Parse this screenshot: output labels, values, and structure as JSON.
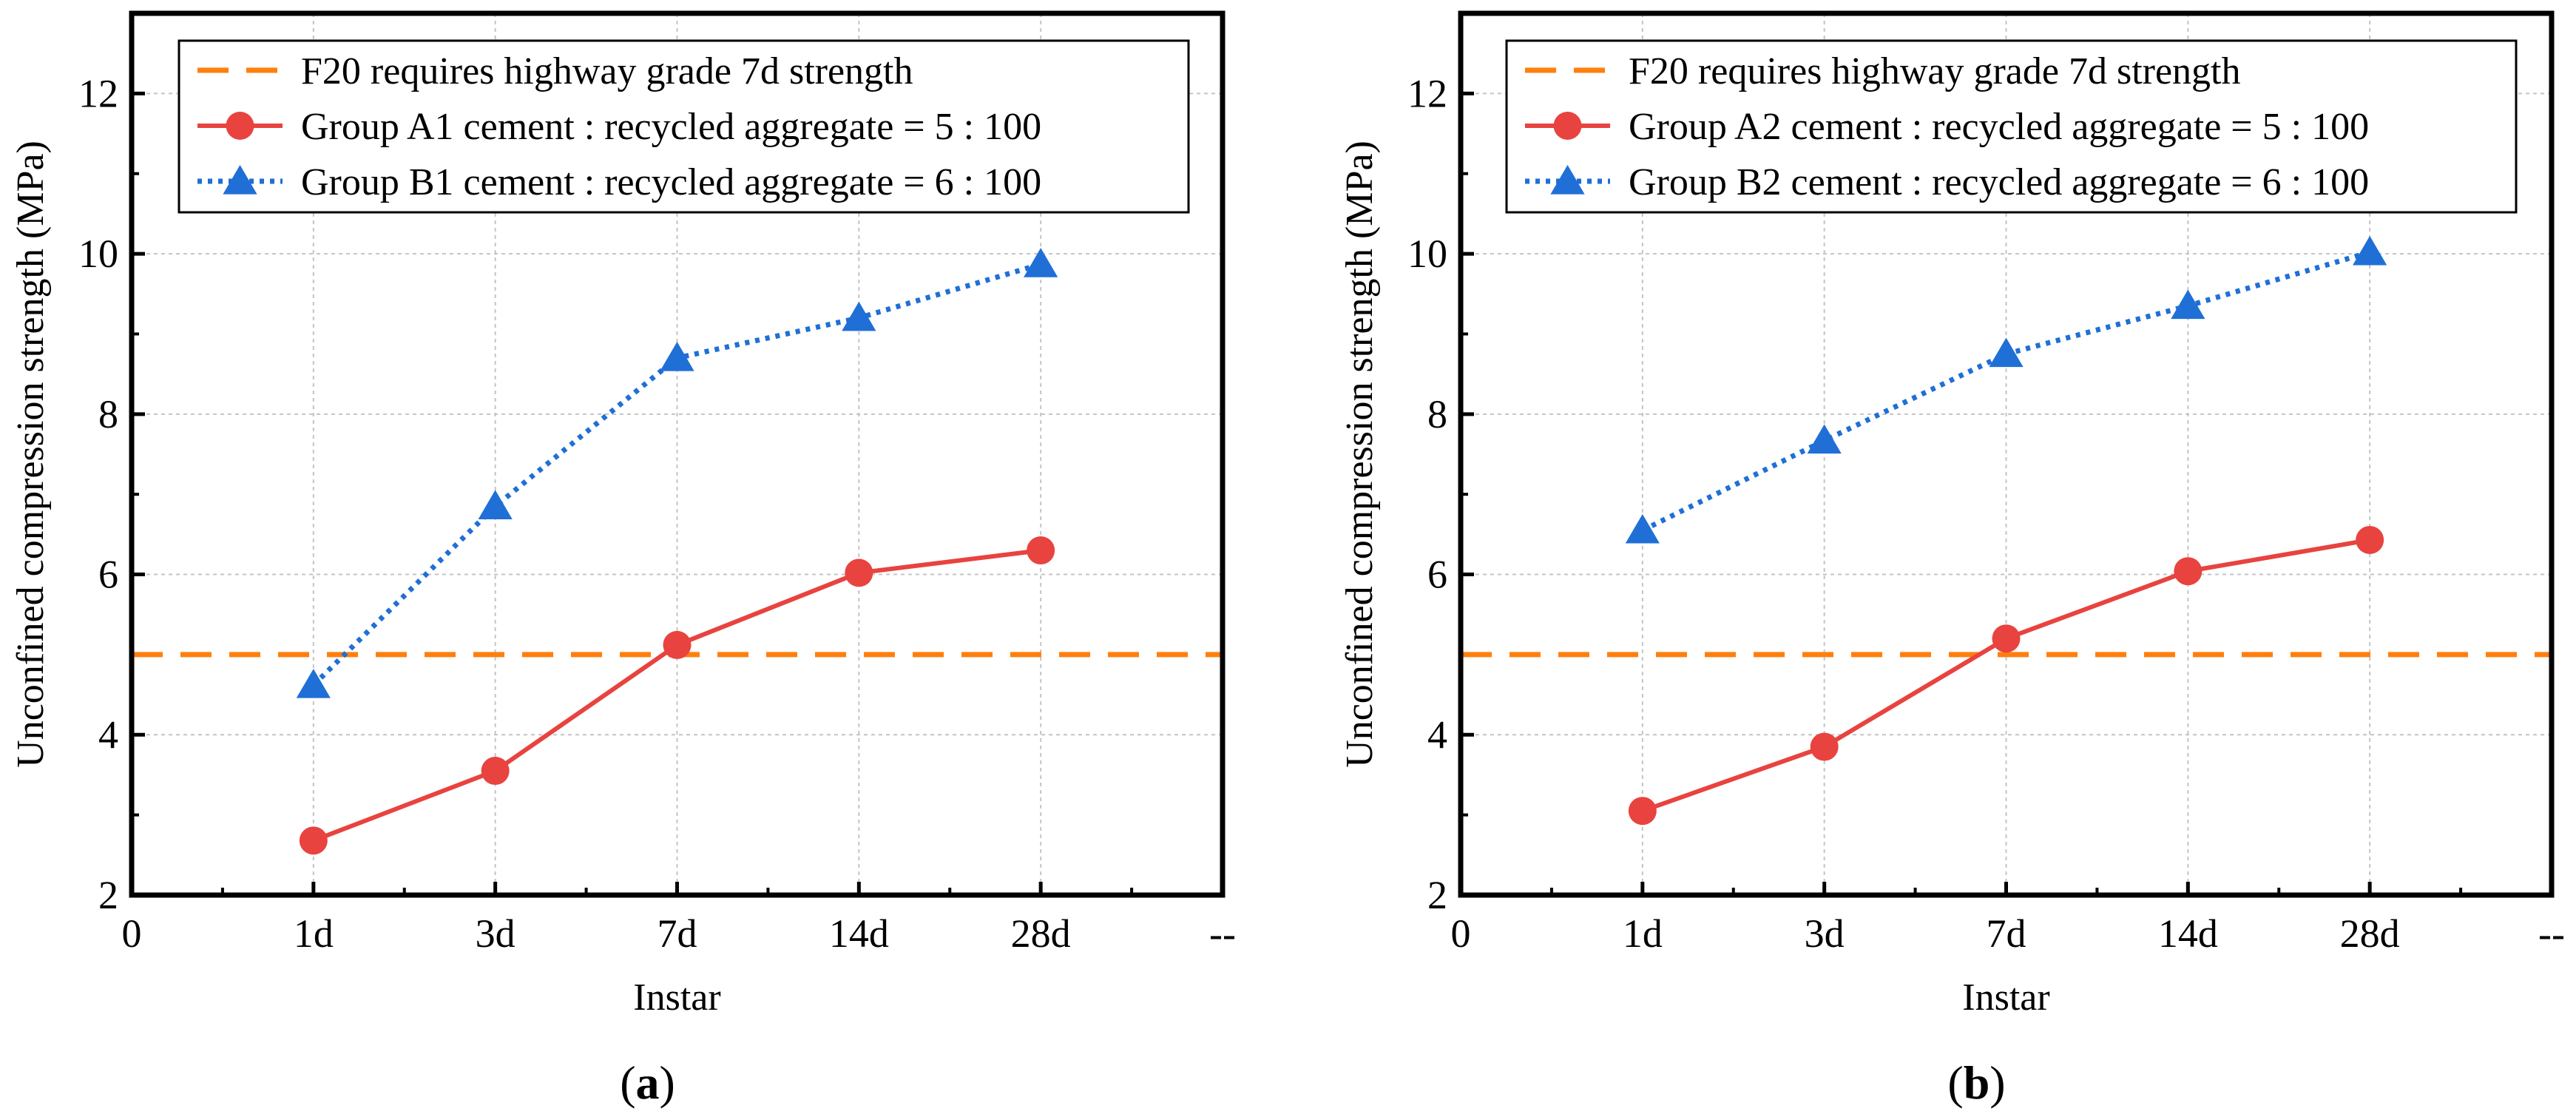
{
  "chart_data": [
    {
      "type": "line",
      "panel_label": "a",
      "xlabel": "Instar",
      "ylabel": "Unconfined compression strength (MPa)",
      "x_tick_labels": [
        "0",
        "1d",
        "3d",
        "7d",
        "14d",
        "28d",
        "--"
      ],
      "categories": [
        "1d",
        "3d",
        "7d",
        "14d",
        "28d"
      ],
      "ylim": [
        2,
        13
      ],
      "y_ticks": [
        2,
        4,
        6,
        8,
        10,
        12
      ],
      "grid": true,
      "legend_position": "top-left",
      "reference_line": {
        "name": "F20 requires highway grade 7d strength",
        "value": 5,
        "color": "#FF7F0E",
        "style": "dashed"
      },
      "series": [
        {
          "name": "Group A1 cement : recycled aggregate = 5 : 100",
          "values": [
            2.68,
            3.55,
            5.12,
            6.02,
            6.3
          ],
          "color": "#E8433F",
          "marker": "circle",
          "style": "solid"
        },
        {
          "name": "Group B1 cement : recycled aggregate = 6 : 100",
          "values": [
            4.62,
            6.85,
            8.7,
            9.2,
            9.87
          ],
          "color": "#1F6FD6",
          "marker": "triangle",
          "style": "dotted"
        }
      ]
    },
    {
      "type": "line",
      "panel_label": "b",
      "xlabel": "Instar",
      "ylabel": "Unconfined compression strength (MPa)",
      "x_tick_labels": [
        "0",
        "1d",
        "3d",
        "7d",
        "14d",
        "28d",
        "--"
      ],
      "categories": [
        "1d",
        "3d",
        "7d",
        "14d",
        "28d"
      ],
      "ylim": [
        2,
        13
      ],
      "y_ticks": [
        2,
        4,
        6,
        8,
        10,
        12
      ],
      "grid": true,
      "legend_position": "top-left",
      "reference_line": {
        "name": "F20 requires highway grade 7d strength",
        "value": 5,
        "color": "#FF7F0E",
        "style": "dashed"
      },
      "series": [
        {
          "name": "Group A2 cement : recycled aggregate = 5 : 100",
          "values": [
            3.05,
            3.85,
            5.2,
            6.04,
            6.43
          ],
          "color": "#E8433F",
          "marker": "circle",
          "style": "solid"
        },
        {
          "name": "Group B2 cement : recycled aggregate = 6 : 100",
          "values": [
            6.55,
            7.67,
            8.75,
            9.35,
            10.02
          ],
          "color": "#1F6FD6",
          "marker": "triangle",
          "style": "dotted"
        }
      ]
    }
  ]
}
